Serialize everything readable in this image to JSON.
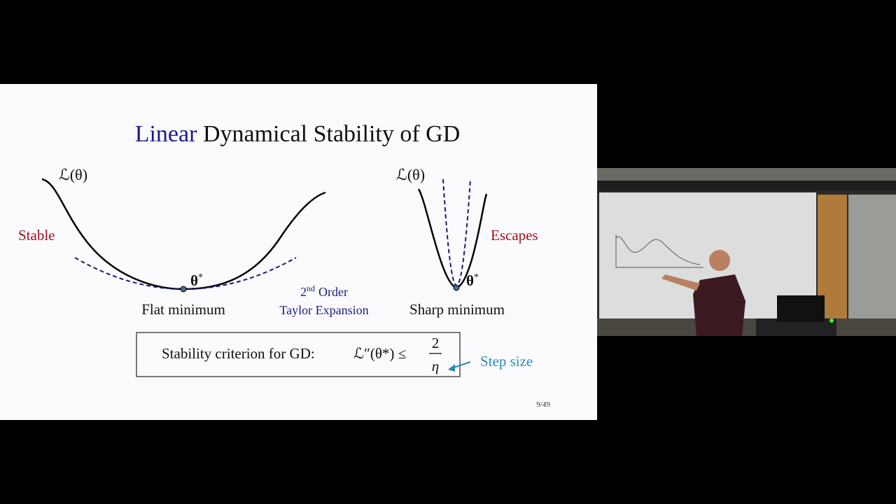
{
  "slide": {
    "title": {
      "highlight": "Linear",
      "rest": "Dynamical Stability of GD"
    },
    "flat": {
      "loss_label": "ℒ(θ)",
      "side_label": "Stable",
      "min_symbol": "θ",
      "min_sup": "*",
      "caption": "Flat minimum"
    },
    "taylor": {
      "ordinal": "2",
      "suffix": "nd",
      "rest": "Order",
      "line2": "Taylor Expansion"
    },
    "sharp": {
      "loss_label": "ℒ(θ)",
      "side_label": "Escapes",
      "min_symbol": "θ",
      "min_sup": "*",
      "caption": "Sharp minimum"
    },
    "criterion": {
      "text": "Stability criterion for GD:",
      "lhs": "ℒ″(θ*) ≤",
      "numerator": "2",
      "denominator": "η"
    },
    "step_label": "Step size",
    "page_number": "9/49"
  }
}
